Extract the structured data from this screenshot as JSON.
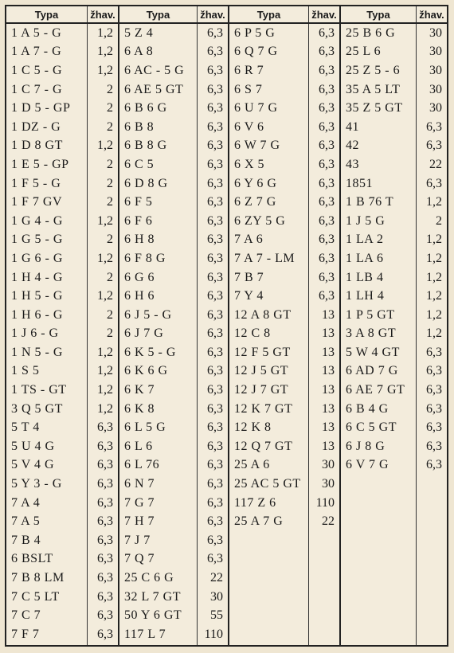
{
  "header": {
    "typ": "Typa",
    "zhav": "žhav."
  },
  "columns": [
    [
      [
        "1 A 5 - G",
        "1,2"
      ],
      [
        "1 A 7 - G",
        "1,2"
      ],
      [
        "1 C 5 - G",
        "1,2"
      ],
      [
        "1 C 7 - G",
        "2"
      ],
      [
        "1 D 5 - GP",
        "2"
      ],
      [
        "1 DZ - G",
        "2"
      ],
      [
        "1 D 8 GT",
        "1,2"
      ],
      [
        "1 E 5 - GP",
        "2"
      ],
      [
        "1 F 5 - G",
        "2"
      ],
      [
        "1 F 7 GV",
        "2"
      ],
      [
        "1 G 4 - G",
        "1,2"
      ],
      [
        "1 G 5 - G",
        "2"
      ],
      [
        "1 G 6 - G",
        "1,2"
      ],
      [
        "1 H 4 - G",
        "2"
      ],
      [
        "1 H 5 - G",
        "1,2"
      ],
      [
        "1 H 6 - G",
        "2"
      ],
      [
        "1 J 6 - G",
        "2"
      ],
      [
        "1 N 5 - G",
        "1,2"
      ],
      [
        "1 S 5",
        "1,2"
      ],
      [
        "1 TS - GT",
        "1,2"
      ],
      [
        "3 Q 5 GT",
        "1,2"
      ],
      [
        "5 T 4",
        "6,3"
      ],
      [
        "5 U 4 G",
        "6,3"
      ],
      [
        "5 V 4 G",
        "6,3"
      ],
      [
        "5 Y 3 - G",
        "6,3"
      ],
      [
        "7 A 4",
        "6,3"
      ],
      [
        "7 A 5",
        "6,3"
      ],
      [
        "7 B 4",
        "6,3"
      ],
      [
        "6 BSLT",
        "6,3"
      ],
      [
        "7 B 8 LM",
        "6,3"
      ],
      [
        "7 C 5 LT",
        "6,3"
      ],
      [
        "7 C 7",
        "6,3"
      ],
      [
        "7 F 7",
        "6,3"
      ]
    ],
    [
      [
        "5 Z 4",
        "6,3"
      ],
      [
        "6 A 8",
        "6,3"
      ],
      [
        "6 AC - 5 G",
        "6,3"
      ],
      [
        "6 AE 5 GT",
        "6,3"
      ],
      [
        "6 B 6 G",
        "6,3"
      ],
      [
        "6 B 8",
        "6,3"
      ],
      [
        "6 B 8 G",
        "6,3"
      ],
      [
        "6 C 5",
        "6,3"
      ],
      [
        "6 D 8 G",
        "6,3"
      ],
      [
        "6 F 5",
        "6,3"
      ],
      [
        "6 F 6",
        "6,3"
      ],
      [
        "6 H 8",
        "6,3"
      ],
      [
        "6 F 8 G",
        "6,3"
      ],
      [
        "6 G 6",
        "6,3"
      ],
      [
        "6 H 6",
        "6,3"
      ],
      [
        "6 J 5 - G",
        "6,3"
      ],
      [
        "6 J 7 G",
        "6,3"
      ],
      [
        "6 K 5 - G",
        "6,3"
      ],
      [
        "6 K 6 G",
        "6,3"
      ],
      [
        "6 K 7",
        "6,3"
      ],
      [
        "6 K 8",
        "6,3"
      ],
      [
        "6 L 5 G",
        "6,3"
      ],
      [
        "6 L 6",
        "6,3"
      ],
      [
        "6 L 76",
        "6,3"
      ],
      [
        "6 N 7",
        "6,3"
      ],
      [
        "7 G 7",
        "6,3"
      ],
      [
        "7 H 7",
        "6,3"
      ],
      [
        "7 J 7",
        "6,3"
      ],
      [
        "7 Q 7",
        "6,3"
      ],
      [
        "25 C 6 G",
        "22"
      ],
      [
        "32 L 7 GT",
        "30"
      ],
      [
        "50 Y 6 GT",
        "55"
      ],
      [
        "117 L 7",
        "110"
      ]
    ],
    [
      [
        "6 P 5 G",
        "6,3"
      ],
      [
        "6 Q 7 G",
        "6,3"
      ],
      [
        "6 R 7",
        "6,3"
      ],
      [
        "6 S 7",
        "6,3"
      ],
      [
        "6 U 7 G",
        "6,3"
      ],
      [
        "6 V 6",
        "6,3"
      ],
      [
        "6 W 7 G",
        "6,3"
      ],
      [
        "6 X 5",
        "6,3"
      ],
      [
        "6 Y 6 G",
        "6,3"
      ],
      [
        "6 Z 7 G",
        "6,3"
      ],
      [
        "6 ZY 5 G",
        "6,3"
      ],
      [
        "7 A 6",
        "6,3"
      ],
      [
        "7 A 7 - LM",
        "6,3"
      ],
      [
        "7 B 7",
        "6,3"
      ],
      [
        "7 Y 4",
        "6,3"
      ],
      [
        "12 A 8 GT",
        "13"
      ],
      [
        "12 C 8",
        "13"
      ],
      [
        "12 F 5 GT",
        "13"
      ],
      [
        "12 J 5 GT",
        "13"
      ],
      [
        "12 J 7 GT",
        "13"
      ],
      [
        "12 K 7 GT",
        "13"
      ],
      [
        "12 K 8",
        "13"
      ],
      [
        "12 Q 7 GT",
        "13"
      ],
      [
        "25 A 6",
        "30"
      ],
      [
        "25 AC 5 GT",
        "30"
      ],
      [
        "117 Z 6",
        "110"
      ],
      [
        "25 A 7 G",
        "22"
      ]
    ],
    [
      [
        "25 B 6 G",
        "30"
      ],
      [
        "25 L 6",
        "30"
      ],
      [
        "25 Z 5 - 6",
        "30"
      ],
      [
        "35 A 5 LT",
        "30"
      ],
      [
        "35 Z 5 GT",
        "30"
      ],
      [
        "41",
        "6,3"
      ],
      [
        "42",
        "6,3"
      ],
      [
        "43",
        "22"
      ],
      [
        "1851",
        "6,3"
      ],
      [
        "1 B 76 T",
        "1,2"
      ],
      [
        "1 J 5 G",
        "2"
      ],
      [
        "1 LA 2",
        "1,2"
      ],
      [
        "1 LA 6",
        "1,2"
      ],
      [
        "1 LB 4",
        "1,2"
      ],
      [
        "1 LH 4",
        "1,2"
      ],
      [
        "1 P 5 GT",
        "1,2"
      ],
      [
        "3 A 8 GT",
        "1,2"
      ],
      [
        "5 W 4 GT",
        "6,3"
      ],
      [
        "6 AD 7 G",
        "6,3"
      ],
      [
        "6 AE 7 GT",
        "6,3"
      ],
      [
        "6 B 4 G",
        "6,3"
      ],
      [
        "6 C 5 GT",
        "6,3"
      ],
      [
        "6 J 8 G",
        "6,3"
      ],
      [
        "6 V 7 G",
        "6,3"
      ]
    ]
  ]
}
